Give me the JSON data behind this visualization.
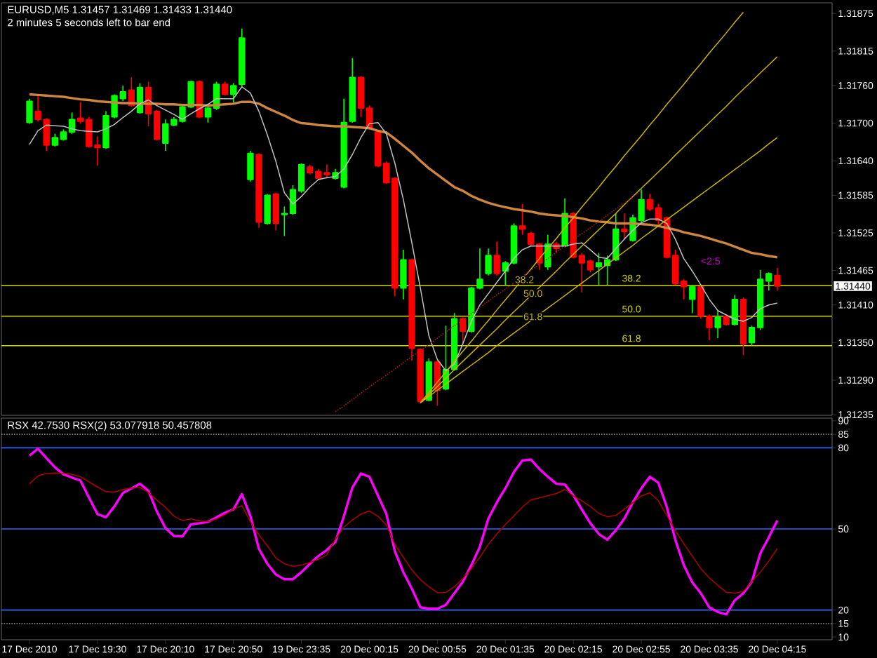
{
  "chart_data": [
    {
      "type": "candlestick",
      "title": "EURUSD,M5  1.31457 1.31469 1.31433 1.31440",
      "subtitle": "2 minutes 5 seconds left to bar end",
      "categories": [
        null,
        null,
        null,
        null,
        null,
        null,
        null,
        null,
        null,
        null,
        null,
        null,
        null,
        null,
        null,
        null,
        null,
        null,
        null,
        null,
        null,
        null,
        null,
        null,
        null,
        null,
        null,
        null,
        null,
        null,
        null,
        null,
        null,
        null,
        null,
        null,
        null,
        null,
        null,
        null,
        null,
        null,
        null,
        null,
        null,
        null,
        null,
        null,
        null,
        null,
        null,
        null,
        null,
        null,
        null,
        null,
        null,
        null,
        null,
        null,
        null,
        null,
        null,
        null,
        null,
        null,
        null,
        null,
        null,
        null,
        null,
        null,
        null,
        null,
        null,
        null,
        null,
        null,
        null,
        null,
        null,
        null,
        null,
        null,
        null,
        null,
        null,
        null,
        null
      ],
      "ohlc": [
        [
          1.31701,
          1.31739,
          1.31699,
          1.31735
        ],
        [
          1.31719,
          1.31744,
          1.31703,
          1.31706
        ],
        [
          1.31706,
          1.31708,
          1.31656,
          1.31665
        ],
        [
          1.31665,
          1.31683,
          1.31663,
          1.31677
        ],
        [
          1.31674,
          1.3169,
          1.31672,
          1.31686
        ],
        [
          1.31686,
          1.31717,
          1.31683,
          1.31706
        ],
        [
          1.31708,
          1.31733,
          1.31699,
          1.31703
        ],
        [
          1.31706,
          1.3171,
          1.31661,
          1.31663
        ],
        [
          1.31665,
          1.31679,
          1.31632,
          1.31661
        ],
        [
          1.31661,
          1.31719,
          1.31659,
          1.31712
        ],
        [
          1.3171,
          1.31746,
          1.31708,
          1.31744
        ],
        [
          1.31739,
          1.3176,
          1.31735,
          1.3175
        ],
        [
          1.31753,
          1.31773,
          1.31726,
          1.31728
        ],
        [
          1.31717,
          1.31764,
          1.31715,
          1.31757
        ],
        [
          1.31757,
          1.31766,
          1.31695,
          1.31715
        ],
        [
          1.31719,
          1.31721,
          1.31672,
          1.31674
        ],
        [
          1.31668,
          1.31706,
          1.31656,
          1.31699
        ],
        [
          1.31697,
          1.3171,
          1.31695,
          1.31706
        ],
        [
          1.31703,
          1.31728,
          1.31701,
          1.31726
        ],
        [
          1.31726,
          1.31768,
          1.31724,
          1.31766
        ],
        [
          1.31766,
          1.31768,
          1.31708,
          1.3171
        ],
        [
          1.3171,
          1.31726,
          1.31701,
          1.31724
        ],
        [
          1.31724,
          1.31766,
          1.31721,
          1.31762
        ],
        [
          1.31762,
          1.31766,
          1.31744,
          1.31746
        ],
        [
          1.31746,
          1.31764,
          1.31733,
          1.3176
        ],
        [
          1.31762,
          1.31851,
          1.31757,
          1.31836
        ],
        [
          1.3161,
          1.31656,
          1.31607,
          1.31652
        ],
        [
          1.3165,
          1.31652,
          1.31533,
          1.31542
        ],
        [
          1.3154,
          1.31587,
          1.31538,
          1.31585
        ],
        [
          1.31587,
          1.31589,
          1.31529,
          1.3154
        ],
        [
          1.31554,
          1.31567,
          1.3152,
          1.31556
        ],
        [
          1.31556,
          1.31601,
          1.31554,
          1.31594
        ],
        [
          1.31592,
          1.31636,
          1.31589,
          1.31634
        ],
        [
          1.3163,
          1.31634,
          1.31618,
          1.31621
        ],
        [
          1.31623,
          1.31627,
          1.3161,
          1.31612
        ],
        [
          1.31621,
          1.31634,
          1.31612,
          1.31618
        ],
        [
          1.31612,
          1.31627,
          1.3161,
          1.31621
        ],
        [
          1.31598,
          1.31739,
          1.31596,
          1.31701
        ],
        [
          1.31703,
          1.31804,
          1.31701,
          1.31773
        ],
        [
          1.31773,
          1.31775,
          1.3171,
          1.31724
        ],
        [
          1.31724,
          1.31728,
          1.3169,
          1.31692
        ],
        [
          1.31686,
          1.31688,
          1.3163,
          1.31632
        ],
        [
          1.31636,
          1.31639,
          1.31603,
          1.31605
        ],
        [
          1.31612,
          1.31614,
          1.31424,
          1.31437
        ],
        [
          1.31437,
          1.31498,
          1.31419,
          1.31482
        ],
        [
          1.31482,
          1.31484,
          1.31321,
          1.31341
        ],
        [
          1.31339,
          1.31341,
          1.31254,
          1.31256
        ],
        [
          1.31258,
          1.31325,
          1.31256,
          1.31319
        ],
        [
          1.31319,
          1.31321,
          1.31249,
          1.31274
        ],
        [
          1.31276,
          1.31377,
          1.31274,
          1.31307
        ],
        [
          1.31307,
          1.31397,
          1.31305,
          1.31388
        ],
        [
          1.31388,
          1.3139,
          1.31348,
          1.31368
        ],
        [
          1.31368,
          1.31439,
          1.31366,
          1.31437
        ],
        [
          1.31437,
          1.315,
          1.31435,
          1.31451
        ],
        [
          1.3146,
          1.315,
          1.31457,
          1.31489
        ],
        [
          1.31489,
          1.31511,
          1.31457,
          1.3146
        ],
        [
          1.31464,
          1.3148,
          1.31442,
          1.31477
        ],
        [
          1.31477,
          1.3154,
          1.31475,
          1.31536
        ],
        [
          1.31536,
          1.31571,
          1.31522,
          1.31531
        ],
        [
          1.31524,
          1.31527,
          1.31504,
          1.31507
        ],
        [
          1.31507,
          1.31509,
          1.31466,
          1.31477
        ],
        [
          1.31471,
          1.31522,
          1.31466,
          1.31507
        ],
        [
          1.31507,
          1.31511,
          1.31493,
          1.315
        ],
        [
          1.31504,
          1.3158,
          1.31502,
          1.31556
        ],
        [
          1.31556,
          1.31558,
          1.31484,
          1.31486
        ],
        [
          1.31489,
          1.31493,
          1.3143,
          1.31477
        ],
        [
          1.3148,
          1.31482,
          1.31462,
          1.31466
        ],
        [
          1.31471,
          1.31493,
          1.31442,
          1.31477
        ],
        [
          1.31473,
          1.31489,
          1.31442,
          1.31482
        ],
        [
          1.31482,
          1.31556,
          1.3148,
          1.31531
        ],
        [
          1.31531,
          1.31556,
          1.31515,
          1.31527
        ],
        [
          1.31513,
          1.31554,
          1.31511,
          1.31549
        ],
        [
          1.31545,
          1.31594,
          1.31542,
          1.31578
        ],
        [
          1.31578,
          1.31587,
          1.3156,
          1.31563
        ],
        [
          1.31565,
          1.31571,
          1.31538,
          1.31545
        ],
        [
          1.31549,
          1.31551,
          1.31484,
          1.31486
        ],
        [
          1.31489,
          1.31498,
          1.31442,
          1.31444
        ],
        [
          1.31448,
          1.31451,
          1.31419,
          1.31439
        ],
        [
          1.31419,
          1.31442,
          1.31397,
          1.31439
        ],
        [
          1.31439,
          1.31442,
          1.31388,
          1.31392
        ],
        [
          1.31392,
          1.31395,
          1.31354,
          1.31374
        ],
        [
          1.31374,
          1.31401,
          1.31357,
          1.3139
        ],
        [
          1.31392,
          1.31395,
          1.31377,
          1.31379
        ],
        [
          1.31379,
          1.31426,
          1.31377,
          1.31419
        ],
        [
          1.31419,
          1.31422,
          1.3133,
          1.31348
        ],
        [
          1.3135,
          1.31377,
          1.31345,
          1.31374
        ],
        [
          1.31374,
          1.31466,
          1.3137,
          1.31451
        ],
        [
          1.31448,
          1.31462,
          1.31433,
          1.3146
        ],
        [
          1.31457,
          1.31469,
          1.31433,
          1.3144
        ]
      ],
      "colors": [
        "#00ff00",
        "#ff0000",
        "#ff0000",
        "#00ff00",
        "#00ff00",
        "#00ff00",
        "#ff0000",
        "#ff0000",
        "#ff0000",
        "#00ff00",
        "#00ff00",
        "#00ff00",
        "#ff0000",
        "#00ff00",
        "#ff0000",
        "#ff0000",
        "#00ff00",
        "#00ff00",
        "#00ff00",
        "#00ff00",
        "#ff0000",
        "#00ff00",
        "#00ff00",
        "#ff0000",
        "#00ff00",
        "#00ff00",
        "#00ff00",
        "#ff0000",
        "#00ff00",
        "#ff0000",
        "#00ff00",
        "#00ff00",
        "#00ff00",
        "#ff0000",
        "#ff0000",
        "#ff0000",
        "#00ff00",
        "#00ff00",
        "#00ff00",
        "#ff0000",
        "#ff0000",
        "#ff0000",
        "#ff0000",
        "#ff0000",
        "#00ff00",
        "#ff0000",
        "#ff0000",
        "#00ff00",
        "#ff0000",
        "#00ff00",
        "#00ff00",
        "#ff0000",
        "#00ff00",
        "#00ff00",
        "#00ff00",
        "#ff0000",
        "#00ff00",
        "#00ff00",
        "#ff0000",
        "#ff0000",
        "#ff0000",
        "#00ff00",
        "#ff0000",
        "#00ff00",
        "#ff0000",
        "#ff0000",
        "#ff0000",
        "#00ff00",
        "#00ff00",
        "#00ff00",
        "#ff0000",
        "#00ff00",
        "#00ff00",
        "#ff0000",
        "#ff0000",
        "#ff0000",
        "#ff0000",
        "#ff0000",
        "#00ff00",
        "#ff0000",
        "#ff0000",
        "#00ff00",
        "#ff0000",
        "#00ff00",
        "#ff0000",
        "#00ff00",
        "#00ff00",
        "#00ff00",
        "#ff0000"
      ],
      "series": [
        {
          "type": "line",
          "color": "#cd853f",
          "values": [
            1.31746,
            1.31745,
            1.31744,
            1.31743,
            1.31742,
            1.3174,
            1.31738,
            1.31737,
            1.31735,
            1.31734,
            1.31733,
            1.31732,
            1.31732,
            1.31731,
            1.31731,
            1.31731,
            1.3173,
            1.3173,
            1.31729,
            1.31729,
            1.31729,
            1.31728,
            1.31729,
            1.3173,
            1.31731,
            1.31734,
            1.31734,
            1.31731,
            1.31724,
            1.31718,
            1.31712,
            1.31705,
            1.317,
            1.31699,
            1.31697,
            1.31696,
            1.31695,
            1.31695,
            1.31694,
            1.31693,
            1.31692,
            1.31688,
            1.31685,
            1.31675,
            1.31664,
            1.31653,
            1.3164,
            1.31628,
            1.31618,
            1.31608,
            1.31598,
            1.31592,
            1.31584,
            1.31578,
            1.31573,
            1.31569,
            1.31566,
            1.31563,
            1.31561,
            1.31559,
            1.31556,
            1.31554,
            1.31553,
            1.31552,
            1.3155,
            1.31548,
            1.31545,
            1.31543,
            1.31542,
            1.3154,
            1.3154,
            1.3154,
            1.31539,
            1.31538,
            1.31536,
            1.31533,
            1.3153,
            1.31526,
            1.31523,
            1.3152,
            1.31516,
            1.31512,
            1.31508,
            1.31503,
            1.31498,
            1.31493,
            1.31491,
            1.31488,
            1.31486
          ]
        },
        {
          "type": "line",
          "color": "#c0c0c0",
          "values": [
            1.31666,
            1.31688,
            1.31697,
            1.31696,
            1.31695,
            1.31691,
            1.31688,
            1.31687,
            1.31686,
            1.31691,
            1.31698,
            1.31709,
            1.31719,
            1.31731,
            1.31737,
            1.31728,
            1.31721,
            1.31714,
            1.31706,
            1.31715,
            1.31723,
            1.3173,
            1.31739,
            1.31739,
            1.31739,
            1.31758,
            1.31748,
            1.31719,
            1.31681,
            1.31639,
            1.31589,
            1.31571,
            1.31583,
            1.31598,
            1.3161,
            1.31613,
            1.31615,
            1.31627,
            1.3165,
            1.31677,
            1.31699,
            1.31701,
            1.31683,
            1.31636,
            1.31578,
            1.31509,
            1.31437,
            1.31361,
            1.31323,
            1.31305,
            1.31316,
            1.31348,
            1.31384,
            1.3141,
            1.31428,
            1.31446,
            1.31464,
            1.31484,
            1.31498,
            1.31504,
            1.31504,
            1.31504,
            1.31504,
            1.31504,
            1.31507,
            1.31509,
            1.31498,
            1.31486,
            1.31484,
            1.315,
            1.31515,
            1.31529,
            1.31541,
            1.31547,
            1.31547,
            1.3154,
            1.31515,
            1.31484,
            1.31464,
            1.31442,
            1.31419,
            1.31401,
            1.31394,
            1.31387,
            1.31384,
            1.3139,
            1.31404,
            1.3141,
            1.31413
          ]
        },
        {
          "type": "line",
          "name": "38.2",
          "color": "#c8b400",
          "values": [
            null,
            null,
            null,
            null,
            null,
            null,
            null,
            null,
            null,
            null,
            null,
            null,
            null,
            null,
            null,
            null,
            null,
            null,
            null,
            null,
            null,
            null,
            null,
            null,
            null,
            null,
            null,
            null,
            null,
            null,
            null,
            null,
            null,
            null,
            null,
            null,
            null,
            null,
            null,
            null,
            null,
            null,
            null,
            null,
            null,
            null,
            1.31254,
            1.3127,
            1.31287,
            1.31303,
            1.3132,
            1.31336,
            1.31352,
            1.31369,
            1.31385,
            1.31402,
            1.31418,
            1.31434,
            1.31451,
            1.31467,
            1.31484,
            1.315,
            1.31516,
            1.31533,
            1.31549,
            1.31566,
            1.31582,
            1.31598,
            1.31615,
            1.31631,
            1.31648,
            1.31664,
            1.3168,
            1.31697,
            1.31713,
            1.3173,
            1.31746,
            1.31762,
            1.31779,
            1.31795,
            1.31812,
            1.31828,
            1.31844,
            1.31861,
            1.31877,
            null,
            null,
            null,
            null
          ]
        },
        {
          "type": "line",
          "name": "50.0",
          "color": "#c8b400",
          "values": [
            null,
            null,
            null,
            null,
            null,
            null,
            null,
            null,
            null,
            null,
            null,
            null,
            null,
            null,
            null,
            null,
            null,
            null,
            null,
            null,
            null,
            null,
            null,
            null,
            null,
            null,
            null,
            null,
            null,
            null,
            null,
            null,
            null,
            null,
            null,
            null,
            null,
            null,
            null,
            null,
            null,
            null,
            null,
            null,
            null,
            null,
            1.31254,
            1.31267,
            1.3128,
            1.31293,
            1.31307,
            1.3132,
            1.31333,
            1.31346,
            1.31359,
            1.31372,
            1.31386,
            1.31399,
            1.31412,
            1.31425,
            1.31438,
            1.31451,
            1.31464,
            1.31478,
            1.31491,
            1.31504,
            1.31517,
            1.3153,
            1.31543,
            1.31556,
            1.3157,
            1.31583,
            1.31596,
            1.31609,
            1.31622,
            1.31635,
            1.31649,
            1.31662,
            1.31675,
            1.31688,
            1.31701,
            1.31714,
            1.31727,
            1.31741,
            1.31754,
            1.31767,
            1.3178,
            1.31793,
            1.31806
          ]
        },
        {
          "type": "line",
          "name": "61.8",
          "color": "#c8b400",
          "values": [
            null,
            null,
            null,
            null,
            null,
            null,
            null,
            null,
            null,
            null,
            null,
            null,
            null,
            null,
            null,
            null,
            null,
            null,
            null,
            null,
            null,
            null,
            null,
            null,
            null,
            null,
            null,
            null,
            null,
            null,
            null,
            null,
            null,
            null,
            null,
            null,
            null,
            null,
            null,
            null,
            null,
            null,
            null,
            null,
            null,
            null,
            1.31254,
            1.31264,
            1.31274,
            1.31284,
            1.31294,
            1.31304,
            1.31314,
            1.31324,
            1.31334,
            1.31345,
            1.31355,
            1.31365,
            1.31375,
            1.31385,
            1.31395,
            1.31405,
            1.31415,
            1.31425,
            1.31435,
            1.31445,
            1.31455,
            1.31465,
            1.31475,
            1.31485,
            1.31495,
            1.31505,
            1.31516,
            1.31526,
            1.31536,
            1.31546,
            1.31556,
            1.31566,
            1.31576,
            1.31586,
            1.31596,
            1.31606,
            1.31616,
            1.31626,
            1.31636,
            1.31646,
            1.31656,
            1.31667,
            1.31677
          ]
        },
        {
          "type": "line",
          "color": "#b02020",
          "line_style": "dotted",
          "values": [
            null,
            null,
            null,
            null,
            null,
            null,
            null,
            null,
            null,
            null,
            null,
            null,
            null,
            null,
            null,
            null,
            null,
            null,
            null,
            null,
            null,
            null,
            null,
            null,
            null,
            null,
            null,
            null,
            null,
            null,
            null,
            null,
            null,
            null,
            null,
            null,
            1.3124,
            1.31249,
            1.31259,
            1.31269,
            1.31279,
            1.31289,
            1.31298,
            1.31308,
            1.31318,
            1.31328,
            1.31337,
            1.31347,
            1.31357,
            1.31367,
            1.31377,
            1.31386,
            1.31396,
            1.31406,
            1.31416,
            1.31426,
            1.31435,
            1.31445,
            1.31455,
            1.31465,
            1.31475,
            1.31484,
            1.31494,
            1.31504,
            1.31514,
            1.31524,
            1.31533,
            1.31543,
            1.31553,
            1.31563,
            1.31572,
            1.31582,
            1.31592,
            null,
            null,
            null,
            null,
            null,
            null,
            null,
            null,
            null,
            null,
            null,
            null,
            null,
            null,
            null,
            null
          ]
        }
      ],
      "ylim": [
        1.31234,
        1.31892
      ],
      "yticks": [
        1.31875,
        1.31815,
        {
          "value": 1.3176,
          "label": "1.31760"
        },
        {
          "value": 1.317,
          "label": "1.31700"
        },
        {
          "value": 1.3164,
          "label": "1.31640"
        },
        1.31585,
        1.31525,
        1.31465,
        {
          "value": 1.3141,
          "label": "1.31410"
        },
        {
          "value": 1.3135,
          "label": "1.31350"
        },
        {
          "value": 1.3129,
          "label": "1.31290"
        },
        1.31235
      ],
      "ref_lines": [
        {
          "axis": "y",
          "value": 1.31441,
          "color": "#d7d700"
        },
        {
          "axis": "y",
          "value": 1.31392,
          "color": "#d7d700"
        },
        {
          "axis": "y",
          "value": 1.31345,
          "color": "#d7d700"
        }
      ],
      "annotations": [
        "<2:5",
        "1.31440",
        {
          "text": "38.2",
          "y": 1.31441
        },
        {
          "text": "50.0",
          "y": 1.31392
        },
        {
          "text": "61.8",
          "y": 1.31345
        }
      ],
      "tick_labels": "y"
    },
    {
      "type": "line",
      "title": "RSX 42.7530  RSX(2) 53.077918 50.457808",
      "categories": [
        "17 Dec 2010",
        null,
        null,
        null,
        null,
        null,
        null,
        null,
        "17 Dec 19:30",
        null,
        null,
        null,
        null,
        null,
        null,
        null,
        "17 Dec 20:10",
        null,
        null,
        null,
        null,
        null,
        null,
        null,
        "17 Dec 20:50",
        null,
        null,
        null,
        null,
        null,
        null,
        null,
        "19 Dec 23:35",
        null,
        null,
        null,
        null,
        null,
        null,
        null,
        "20 Dec 00:15",
        null,
        null,
        null,
        null,
        null,
        null,
        null,
        "20 Dec 00:55",
        null,
        null,
        null,
        null,
        null,
        null,
        null,
        "20 Dec 01:35",
        null,
        null,
        null,
        null,
        null,
        null,
        null,
        "20 Dec 02:15",
        null,
        null,
        null,
        null,
        null,
        null,
        null,
        "20 Dec 02:55",
        null,
        null,
        null,
        null,
        null,
        null,
        null,
        "20 Dec 03:35",
        null,
        null,
        null,
        null,
        null,
        null,
        null,
        "20 Dec 04:15"
      ],
      "series": [
        {
          "color": "#ff00ff",
          "values": [
            77.1,
            79.7,
            76.2,
            72.8,
            70.2,
            69,
            67.9,
            61.6,
            55.5,
            54.3,
            58.4,
            63.3,
            65,
            66.7,
            64.1,
            56.4,
            50.3,
            47.4,
            47.2,
            51.7,
            52.1,
            52.6,
            54.3,
            56,
            57.2,
            62.9,
            54.7,
            42.6,
            37.1,
            33.1,
            31.4,
            31.4,
            34,
            37.1,
            40,
            42.2,
            45.2,
            54.7,
            65.3,
            70.5,
            69.3,
            62.4,
            55.5,
            41.7,
            34,
            27.9,
            21,
            20.5,
            20.5,
            21.9,
            26.2,
            30.5,
            36.6,
            43.4,
            53.8,
            59.8,
            65,
            71,
            75.3,
            75.7,
            72.2,
            69.3,
            66.7,
            66.4,
            62.4,
            57.2,
            52.1,
            48.1,
            46,
            49.5,
            53.8,
            59.8,
            65,
            69.3,
            67.1,
            58.1,
            46,
            36.6,
            30.2,
            26.2,
            21,
            19.3,
            18.4,
            23.6,
            26.2,
            30.5,
            40.9,
            46.9,
            53.1
          ]
        },
        {
          "color": "#b00000",
          "values": [
            66.7,
            69.6,
            70.5,
            70.7,
            70.6,
            70.2,
            69.3,
            67.4,
            65.5,
            63.8,
            63.6,
            64.6,
            65.1,
            65.3,
            63.5,
            60.6,
            58,
            54.7,
            53.1,
            53.7,
            53,
            52.7,
            53.7,
            55.3,
            57.3,
            58.6,
            52.6,
            47.8,
            43.7,
            39.2,
            37.1,
            36.2,
            36.6,
            37.6,
            38.7,
            40.5,
            46.2,
            50.7,
            53.3,
            55.5,
            56.6,
            54.7,
            51.4,
            44.3,
            39.5,
            34.8,
            31.2,
            28.6,
            26.4,
            26.5,
            28.6,
            31.7,
            35.3,
            39.6,
            44.3,
            48.2,
            51.6,
            54.8,
            58.1,
            60.7,
            61.5,
            62.3,
            63.1,
            64.6,
            62.2,
            60.4,
            58.3,
            55.7,
            54.5,
            55,
            57.3,
            59.7,
            62.2,
            63.4,
            60.5,
            54.9,
            49.4,
            44.5,
            39.9,
            35.3,
            31.9,
            29.1,
            26.6,
            26.2,
            26.9,
            30.5,
            34,
            38.1,
            42.8
          ]
        }
      ],
      "ylim": [
        9,
        91
      ],
      "yticks": [
        10,
        15,
        20,
        50,
        80,
        85,
        90
      ],
      "ref_lines": [
        {
          "axis": "y",
          "value": 80,
          "color": "#3366ff"
        },
        {
          "axis": "y",
          "value": 50,
          "color": "#3366ff"
        },
        {
          "axis": "y",
          "value": 20,
          "color": "#3366ff"
        },
        {
          "axis": "y",
          "value": 85,
          "color": "#808080",
          "line_style": "dotted"
        },
        {
          "axis": "y",
          "value": 15,
          "color": "#808080",
          "line_style": "dotted"
        }
      ]
    }
  ]
}
